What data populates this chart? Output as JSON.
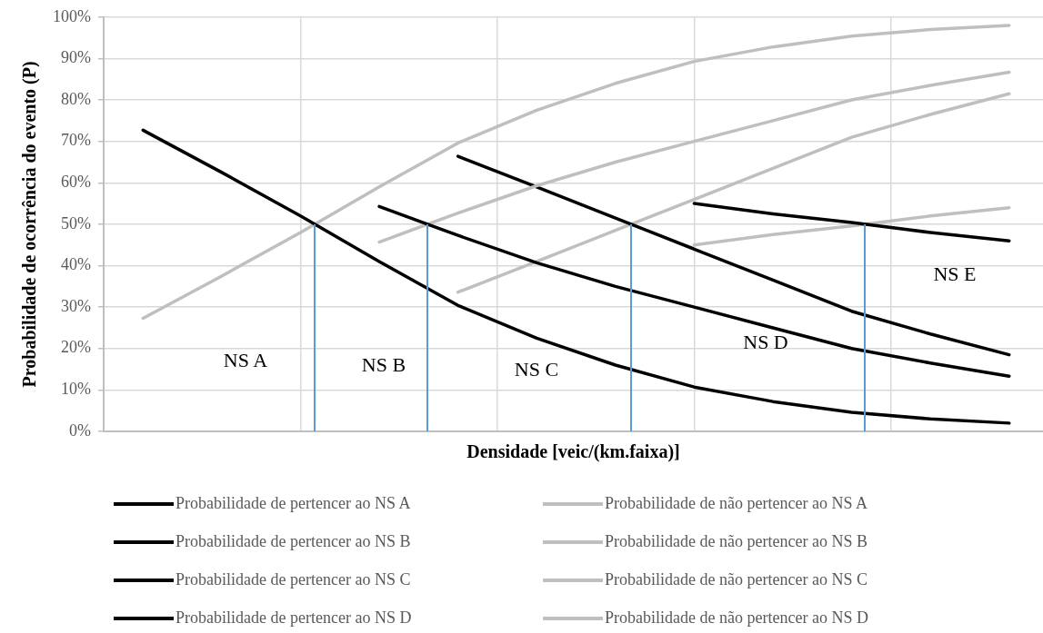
{
  "chart_data": {
    "type": "line",
    "xlabel": "Densidade [veic/(km.faixa)]",
    "ylabel": "Probabilidade de ocorrência do evento (P)",
    "categories": [
      null,
      null,
      null,
      null,
      null,
      null,
      null,
      null,
      null,
      null,
      null,
      null
    ],
    "series": [
      {
        "name": "Probabilidade de pertencer ao NS A",
        "color": "#000000",
        "values": [
          72.7,
          62.5,
          52,
          41,
          30.4,
          22.5,
          16,
          10.7,
          7.2,
          4.6,
          3,
          2
        ]
      },
      {
        "name": "Probabilidade de não pertencer ao NS A",
        "color": "#bfbfbf",
        "values": [
          27.3,
          37.5,
          48,
          59,
          69.6,
          77.5,
          84,
          89.3,
          92.8,
          95.4,
          97,
          98
        ]
      },
      {
        "name": "Probabilidade de pertencer ao NS B",
        "color": "#000000",
        "values": [
          null,
          null,
          null,
          54.3,
          47.3,
          40.7,
          35,
          30,
          25,
          20,
          16.5,
          13.3
        ]
      },
      {
        "name": "Probabilidade de não pertencer ao NS B",
        "color": "#bfbfbf",
        "values": [
          null,
          null,
          null,
          45.7,
          52.7,
          59.3,
          65,
          70,
          75,
          80,
          83.5,
          86.7
        ]
      },
      {
        "name": "Probabilidade de pertencer ao NS C",
        "color": "#000000",
        "values": [
          null,
          null,
          null,
          null,
          66.4,
          59,
          51.5,
          44,
          36.5,
          29,
          23.5,
          18.5
        ]
      },
      {
        "name": "Probabilidade de não pertencer ao NS C",
        "color": "#bfbfbf",
        "values": [
          null,
          null,
          null,
          null,
          33.6,
          41,
          48.5,
          56,
          63.5,
          71,
          76.5,
          81.5
        ]
      },
      {
        "name": "Probabilidade de pertencer ao NS D",
        "color": "#000000",
        "values": [
          null,
          null,
          null,
          null,
          null,
          null,
          null,
          55,
          52.5,
          50.4,
          48,
          46
        ]
      },
      {
        "name": "Probabilidade de não pertencer ao NS D",
        "color": "#bfbfbf",
        "values": [
          null,
          null,
          null,
          null,
          null,
          null,
          null,
          45,
          47.5,
          49.6,
          52,
          54
        ]
      }
    ],
    "ylim": [
      0,
      100
    ],
    "yticks": [
      {
        "value": 0,
        "label": "0%"
      },
      {
        "value": 10,
        "label": "10%"
      },
      {
        "value": 20,
        "label": "20%"
      },
      {
        "value": 30,
        "label": "30%"
      },
      {
        "value": 40,
        "label": "40%"
      },
      {
        "value": 50,
        "label": "50%"
      },
      {
        "value": 60,
        "label": "60%"
      },
      {
        "value": 70,
        "label": "70%"
      },
      {
        "value": 80,
        "label": "80%"
      },
      {
        "value": 90,
        "label": "90%"
      },
      {
        "value": 100,
        "label": "100%"
      }
    ],
    "annotations": [
      "NS A",
      "NS B",
      "NS C",
      "NS D",
      "NS E"
    ],
    "grid": true,
    "legend": "bottom",
    "marker": "none",
    "line_style": "solid",
    "tick_labels": "y"
  }
}
